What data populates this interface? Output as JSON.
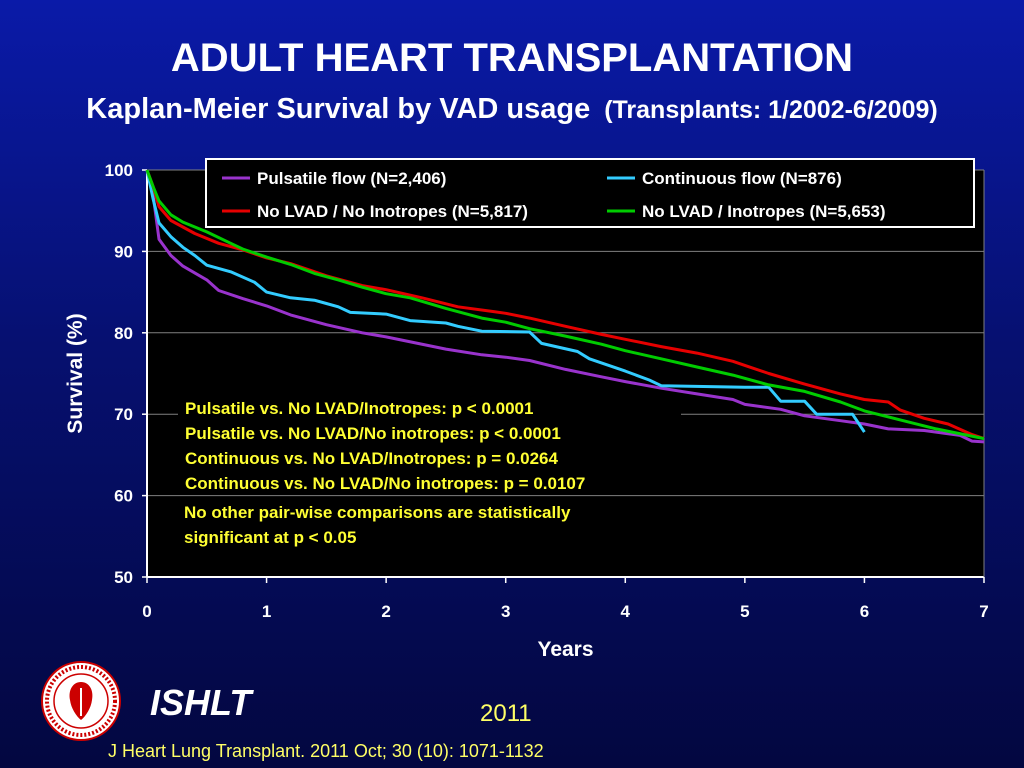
{
  "slide": {
    "title": "ADULT HEART TRANSPLANTATION",
    "subtitle": "Kaplan-Meier Survival by VAD usage",
    "subtitle_paren": "(Transplants: 1/2002-6/2009)",
    "brand": "ISHLT",
    "year": "2011",
    "citation": "J Heart Lung Transplant. 2011 Oct; 30 (10): 1071-1132"
  },
  "logo": {
    "icon": "ishlt-seal-icon",
    "ring_text": "INTERNATIONAL SOCIETY FOR HEART & LUNG TRANSPLANTATION"
  },
  "chart_data": {
    "type": "line",
    "xlabel": "Years",
    "ylabel": "Survival (%)",
    "xlim": [
      0,
      7
    ],
    "ylim": [
      50,
      100
    ],
    "xticks": [
      "0",
      "1",
      "2",
      "3",
      "4",
      "5",
      "6",
      "7"
    ],
    "yticks": [
      "50",
      "60",
      "70",
      "80",
      "90",
      "100"
    ],
    "grid": true,
    "legend_position": "top",
    "plot_background": "#000000",
    "series": [
      {
        "name": "Pulsatile flow (N=2,406)",
        "color": "#9933cc",
        "points": [
          [
            0,
            100
          ],
          [
            0.05,
            97
          ],
          [
            0.1,
            91.5
          ],
          [
            0.2,
            89.5
          ],
          [
            0.3,
            88.2
          ],
          [
            0.5,
            86.5
          ],
          [
            0.6,
            85.2
          ],
          [
            0.8,
            84.2
          ],
          [
            1.0,
            83.3
          ],
          [
            1.2,
            82.2
          ],
          [
            1.5,
            81
          ],
          [
            1.8,
            80
          ],
          [
            2.0,
            79.5
          ],
          [
            2.5,
            78
          ],
          [
            2.8,
            77.3
          ],
          [
            3.0,
            77
          ],
          [
            3.2,
            76.6
          ],
          [
            3.5,
            75.5
          ],
          [
            3.8,
            74.6
          ],
          [
            4.0,
            74
          ],
          [
            4.3,
            73.2
          ],
          [
            4.6,
            72.5
          ],
          [
            4.9,
            71.8
          ],
          [
            5.0,
            71.2
          ],
          [
            5.3,
            70.6
          ],
          [
            5.5,
            69.8
          ],
          [
            5.8,
            69.2
          ],
          [
            6.0,
            68.8
          ],
          [
            6.2,
            68.2
          ],
          [
            6.5,
            68
          ],
          [
            6.8,
            67.4
          ],
          [
            6.9,
            66.7
          ],
          [
            7.0,
            66.6
          ]
        ]
      },
      {
        "name": "Continuous flow (N=876)",
        "color": "#33ccff",
        "points": [
          [
            0,
            100
          ],
          [
            0.05,
            96.5
          ],
          [
            0.1,
            93.5
          ],
          [
            0.2,
            91.8
          ],
          [
            0.3,
            90.5
          ],
          [
            0.4,
            89.5
          ],
          [
            0.5,
            88.3
          ],
          [
            0.7,
            87.5
          ],
          [
            0.9,
            86.2
          ],
          [
            1.0,
            85
          ],
          [
            1.2,
            84.3
          ],
          [
            1.4,
            84
          ],
          [
            1.5,
            83.6
          ],
          [
            1.6,
            83.2
          ],
          [
            1.7,
            82.5
          ],
          [
            2.0,
            82.3
          ],
          [
            2.2,
            81.5
          ],
          [
            2.5,
            81.2
          ],
          [
            2.6,
            80.8
          ],
          [
            2.8,
            80.2
          ],
          [
            3.2,
            80.1
          ],
          [
            3.3,
            78.7
          ],
          [
            3.6,
            77.7
          ],
          [
            3.7,
            76.8
          ],
          [
            4.0,
            75.3
          ],
          [
            4.2,
            74.2
          ],
          [
            4.3,
            73.5
          ],
          [
            5.0,
            73.3
          ],
          [
            5.2,
            73.3
          ],
          [
            5.3,
            71.6
          ],
          [
            5.5,
            71.6
          ],
          [
            5.6,
            70
          ],
          [
            5.9,
            70
          ],
          [
            6.0,
            67.8
          ]
        ]
      },
      {
        "name": "No LVAD / No Inotropes  (N=5,817)",
        "color": "#e60000",
        "points": [
          [
            0,
            100
          ],
          [
            0.05,
            98
          ],
          [
            0.1,
            95.5
          ],
          [
            0.2,
            93.8
          ],
          [
            0.4,
            92.2
          ],
          [
            0.6,
            91
          ],
          [
            0.8,
            90.2
          ],
          [
            1.0,
            89.2
          ],
          [
            1.2,
            88.5
          ],
          [
            1.5,
            87
          ],
          [
            1.8,
            85.8
          ],
          [
            2.0,
            85.3
          ],
          [
            2.3,
            84.3
          ],
          [
            2.6,
            83.2
          ],
          [
            2.9,
            82.6
          ],
          [
            3.0,
            82.4
          ],
          [
            3.2,
            81.8
          ],
          [
            3.5,
            80.8
          ],
          [
            3.8,
            79.8
          ],
          [
            4.0,
            79.2
          ],
          [
            4.3,
            78.3
          ],
          [
            4.6,
            77.5
          ],
          [
            4.9,
            76.5
          ],
          [
            5.0,
            76
          ],
          [
            5.2,
            75
          ],
          [
            5.5,
            73.7
          ],
          [
            5.8,
            72.5
          ],
          [
            6.0,
            71.8
          ],
          [
            6.2,
            71.5
          ],
          [
            6.3,
            70.5
          ],
          [
            6.5,
            69.5
          ],
          [
            6.7,
            68.8
          ],
          [
            6.9,
            67.5
          ],
          [
            7.0,
            67
          ]
        ]
      },
      {
        "name": "No LVAD / Inotropes (N=5,653)",
        "color": "#00cc00",
        "points": [
          [
            0,
            100
          ],
          [
            0.05,
            98
          ],
          [
            0.1,
            96.2
          ],
          [
            0.2,
            94.5
          ],
          [
            0.3,
            93.6
          ],
          [
            0.5,
            92.4
          ],
          [
            0.7,
            91
          ],
          [
            0.8,
            90.3
          ],
          [
            1.0,
            89.3
          ],
          [
            1.2,
            88.4
          ],
          [
            1.4,
            87.3
          ],
          [
            1.6,
            86.5
          ],
          [
            1.8,
            85.6
          ],
          [
            2.0,
            84.8
          ],
          [
            2.2,
            84.3
          ],
          [
            2.5,
            83
          ],
          [
            2.8,
            81.8
          ],
          [
            3.0,
            81.3
          ],
          [
            3.2,
            80.5
          ],
          [
            3.5,
            79.6
          ],
          [
            3.8,
            78.6
          ],
          [
            4.0,
            77.8
          ],
          [
            4.3,
            76.8
          ],
          [
            4.6,
            75.8
          ],
          [
            4.9,
            74.8
          ],
          [
            5.2,
            73.6
          ],
          [
            5.5,
            72.8
          ],
          [
            5.8,
            71.5
          ],
          [
            6.0,
            70.4
          ],
          [
            6.3,
            69.3
          ],
          [
            6.6,
            68.2
          ],
          [
            7.0,
            67
          ]
        ]
      }
    ],
    "annotations": {
      "p_values": [
        "Pulsatile vs. No LVAD/Inotropes: p < 0.0001",
        "Pulsatile vs. No LVAD/No inotropes: p < 0.0001",
        "Continuous vs.  No LVAD/Inotropes: p = 0.0264",
        "Continuous vs.  No LVAD/No inotropes: p = 0.0107"
      ],
      "note_line1": "No other pair-wise comparisons are statistically",
      "note_line2": "significant at p < 0.05",
      "color": "#ffff33"
    }
  }
}
